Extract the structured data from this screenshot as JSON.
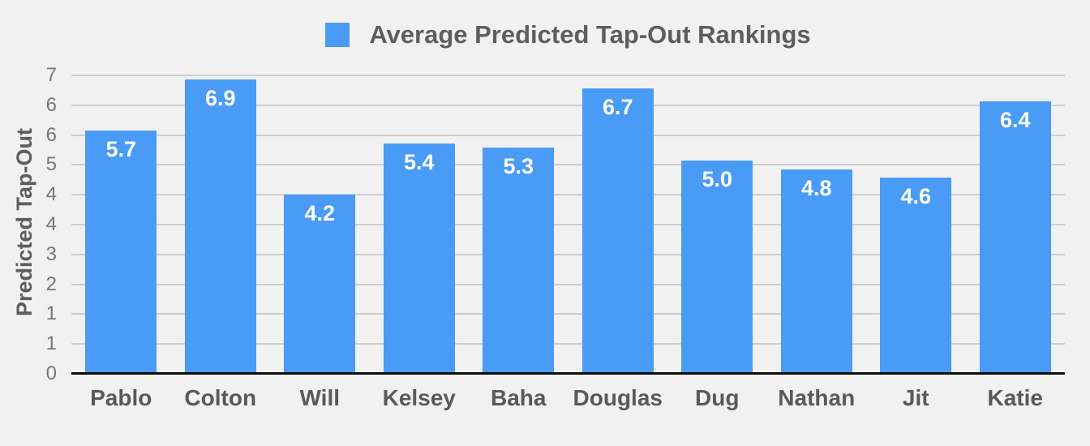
{
  "title": {
    "text": "Average Predicted Tap-Out Rankings"
  },
  "y_axis": {
    "title": "Predicted Tap-Out",
    "ticks": [
      {
        "value": 0,
        "label": "0"
      },
      {
        "value": 0.7,
        "label": "1"
      },
      {
        "value": 1.4,
        "label": "1"
      },
      {
        "value": 2.1,
        "label": "2"
      },
      {
        "value": 2.8,
        "label": "3"
      },
      {
        "value": 3.5,
        "label": "4"
      },
      {
        "value": 4.2,
        "label": "4"
      },
      {
        "value": 4.9,
        "label": "5"
      },
      {
        "value": 5.6,
        "label": "6"
      },
      {
        "value": 6.3,
        "label": "6"
      },
      {
        "value": 7,
        "label": "7"
      }
    ]
  },
  "chart_data": {
    "type": "bar",
    "title": "Average Predicted Tap-Out Rankings",
    "categories": [
      "Pablo",
      "Colton",
      "Will",
      "Kelsey",
      "Baha",
      "Douglas",
      "Dug",
      "Nathan",
      "Jit",
      "Katie"
    ],
    "values": [
      5.7,
      6.9,
      4.2,
      5.4,
      5.3,
      6.7,
      5.0,
      4.8,
      4.6,
      6.4
    ],
    "value_labels": [
      "5.7",
      "6.9",
      "4.2",
      "5.4",
      "5.3",
      "6.7",
      "5.0",
      "4.8",
      "4.6",
      "6.4"
    ],
    "xlabel": "",
    "ylabel": "Predicted Tap-Out",
    "ylim": [
      0,
      7
    ],
    "gridline_step": 0.7,
    "grid": true,
    "legend_position": "top"
  },
  "colors": {
    "bar": "#4a9bf5",
    "background": "#f1f1f1",
    "gridline": "#cecece",
    "baseline": "#0d0d0d",
    "title_text": "#5e5e5e",
    "tick_text": "#767676",
    "category_text": "#595959",
    "value_label_text": "#ffffff"
  }
}
